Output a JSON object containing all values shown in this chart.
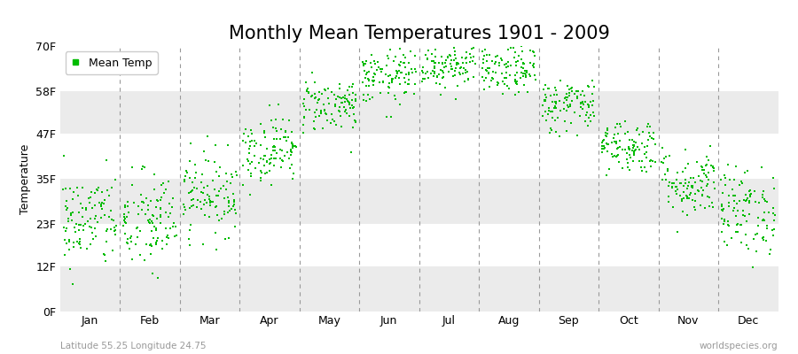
{
  "title": "Monthly Mean Temperatures 1901 - 2009",
  "ylabel": "Temperature",
  "xlabel": "",
  "subtitle_left": "Latitude 55.25 Longitude 24.75",
  "subtitle_right": "worldspecies.org",
  "legend_label": "Mean Temp",
  "dot_color": "#00BB00",
  "dot_size": 3,
  "background_color": "#ffffff",
  "plot_bg_color": "#ffffff",
  "band_colors": [
    "#ebebeb",
    "#ffffff"
  ],
  "y_ticks": [
    0,
    12,
    23,
    35,
    47,
    58,
    70
  ],
  "y_tick_labels": [
    "0F",
    "12F",
    "23F",
    "35F",
    "47F",
    "58F",
    "70F"
  ],
  "ylim": [
    0,
    70
  ],
  "months": [
    "Jan",
    "Feb",
    "Mar",
    "Apr",
    "May",
    "Jun",
    "Jul",
    "Aug",
    "Sep",
    "Oct",
    "Nov",
    "Dec"
  ],
  "num_years": 109,
  "start_year": 1901,
  "end_year": 2009,
  "monthly_mean_C": [
    -4.5,
    -4.8,
    -0.5,
    6.0,
    12.5,
    16.5,
    18.5,
    17.5,
    12.5,
    6.5,
    1.0,
    -3.0
  ],
  "monthly_std_C": [
    3.5,
    3.8,
    3.0,
    2.5,
    2.0,
    2.0,
    1.8,
    1.8,
    2.0,
    2.0,
    2.5,
    3.2
  ],
  "title_fontsize": 15,
  "axis_label_fontsize": 9,
  "tick_fontsize": 9,
  "legend_fontsize": 9
}
